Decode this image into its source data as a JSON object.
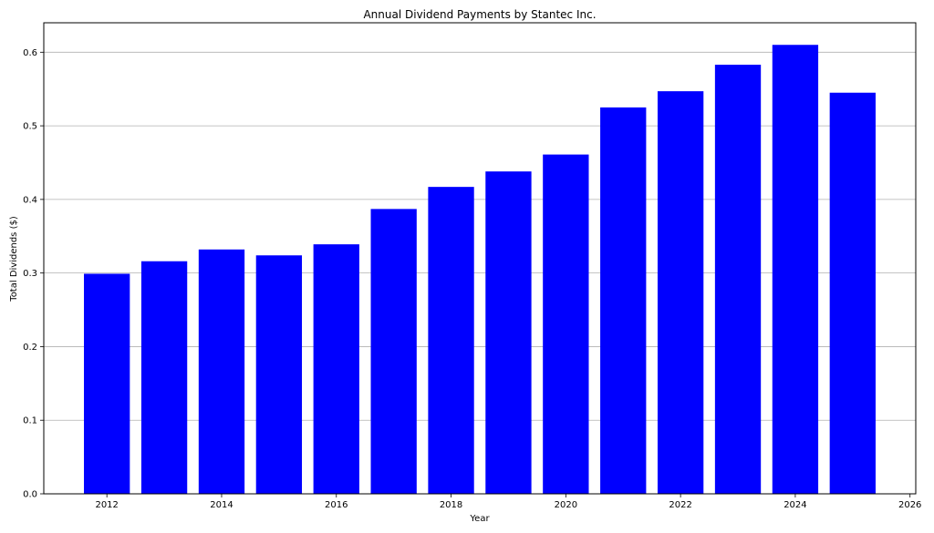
{
  "chart_data": {
    "type": "bar",
    "title": "Annual Dividend Payments by Stantec Inc.",
    "xlabel": "Year",
    "ylabel": "Total Dividends ($)",
    "x": [
      2012,
      2013,
      2014,
      2015,
      2016,
      2017,
      2018,
      2019,
      2020,
      2021,
      2022,
      2023,
      2024,
      2025
    ],
    "values": [
      0.299,
      0.316,
      0.332,
      0.324,
      0.339,
      0.387,
      0.417,
      0.438,
      0.461,
      0.525,
      0.547,
      0.583,
      0.61,
      0.545
    ],
    "bar_color": "#0000ff",
    "xlim": [
      2010.9,
      2026.1
    ],
    "ylim": [
      0,
      0.64
    ],
    "x_ticks": [
      2012,
      2014,
      2016,
      2018,
      2020,
      2022,
      2024,
      2026
    ],
    "y_ticks": [
      0.0,
      0.1,
      0.2,
      0.3,
      0.4,
      0.5,
      0.6
    ],
    "y_tick_labels": [
      "0.0",
      "0.1",
      "0.2",
      "0.3",
      "0.4",
      "0.5",
      "0.6"
    ],
    "grid": "y"
  }
}
